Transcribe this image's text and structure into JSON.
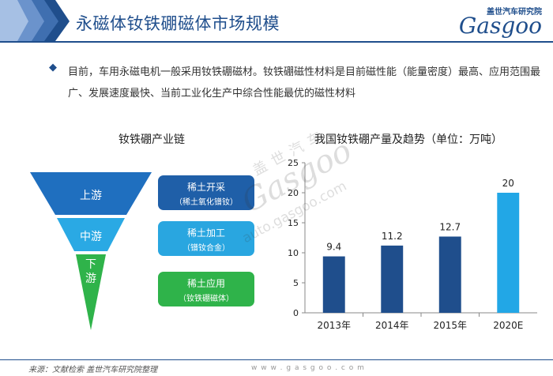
{
  "header": {
    "title": "永磁体钕铁硼磁体市场规模",
    "logo_cn": "盖世汽车研究院",
    "logo_en": "Gasgoo"
  },
  "intro": {
    "bullet": "◆",
    "text": "目前，车用永磁电机一般采用钕铁硼磁材。钕铁硼磁性材料是目前磁性能（能量密度）最高、应用范围最广、发展速度最快、当前工业化生产中综合性能最优的磁性材料"
  },
  "chain": {
    "title": "钕铁硼产业链",
    "stages": [
      {
        "label": "上游",
        "color": "#1f6fbf"
      },
      {
        "label": "中游",
        "color": "#2aa9e4"
      },
      {
        "label": "下\n游",
        "color": "#2fb34a"
      }
    ],
    "boxes": [
      {
        "line1": "稀土开采",
        "line2": "（稀土氧化镨钕）",
        "color": "#1f5fa8"
      },
      {
        "line1": "稀土加工",
        "line2": "（镨钕合金）",
        "color": "#29a6e0"
      },
      {
        "line1": "稀土应用",
        "line2": "（钕铁硼磁体）",
        "color": "#2fb34a"
      }
    ]
  },
  "watermark": {
    "cn": "盖世汽车",
    "en": "Gasgoo",
    "url": "auto.gasgoo.com"
  },
  "chart_data": {
    "type": "bar",
    "title": "我国钕铁硼产量及趋势（单位：万吨）",
    "categories": [
      "2013年",
      "2014年",
      "2015年",
      "2020E"
    ],
    "values": [
      9.4,
      11.2,
      12.7,
      20
    ],
    "value_labels": [
      "9.4",
      "11.2",
      "12.7",
      "20"
    ],
    "bar_colors": [
      "#1f4e8c",
      "#1f4e8c",
      "#1f4e8c",
      "#22a7e6"
    ],
    "ylim": [
      0,
      25
    ],
    "yticks": [
      0,
      5,
      10,
      15,
      20,
      25
    ],
    "grid": false,
    "legend": "none"
  },
  "footer": {
    "source": "来源：文献检索  盖世汽车研究院整理",
    "url": "w w w . g a s g o o . c o m"
  }
}
